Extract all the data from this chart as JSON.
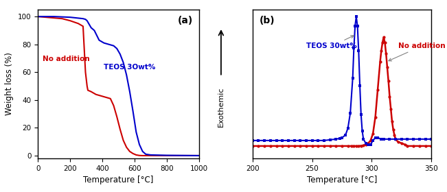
{
  "panel_a": {
    "label": "(a)",
    "xlabel": "Temperature [°C]",
    "ylabel": "Weight loss (%)",
    "xlim": [
      0,
      1000
    ],
    "ylim": [
      -2,
      105
    ],
    "xticks": [
      0,
      200,
      400,
      600,
      800,
      1000
    ],
    "yticks": [
      0,
      20,
      40,
      60,
      80,
      100
    ],
    "no_addition": {
      "color": "#cc0000",
      "label": "No addition",
      "x": [
        0,
        50,
        100,
        150,
        200,
        250,
        280,
        295,
        300,
        305,
        310,
        330,
        360,
        390,
        420,
        450,
        470,
        490,
        510,
        530,
        550,
        570,
        590,
        610,
        630,
        650,
        680,
        700,
        800,
        1000
      ],
      "y": [
        100,
        99.5,
        99,
        98.5,
        97,
        95,
        93,
        60,
        55,
        50,
        47,
        46,
        44,
        43,
        42,
        41,
        36,
        28,
        19,
        11,
        6,
        3,
        1.5,
        0.5,
        0.1,
        0,
        0,
        0,
        0,
        0
      ]
    },
    "teos_30": {
      "color": "#0000cc",
      "label": "TEOS 3Owt%",
      "x": [
        0,
        100,
        200,
        280,
        295,
        300,
        305,
        310,
        320,
        330,
        350,
        380,
        410,
        440,
        470,
        490,
        510,
        530,
        550,
        570,
        590,
        610,
        630,
        650,
        670,
        700,
        800,
        1000
      ],
      "y": [
        100,
        100,
        99.5,
        98.5,
        98,
        97.5,
        97,
        96,
        94,
        92,
        90,
        83,
        81,
        80,
        79,
        77,
        73,
        67,
        58,
        46,
        32,
        17,
        8,
        3,
        1,
        0.5,
        0.2,
        0
      ]
    }
  },
  "panel_b": {
    "label": "(b)",
    "xlabel": "Temperature [°C]",
    "xlim": [
      200,
      350
    ],
    "ylim": [
      -0.08,
      1.0
    ],
    "xticks": [
      200,
      250,
      300,
      350
    ],
    "no_addition": {
      "color": "#cc0000",
      "label": "No addition",
      "x": [
        200,
        205,
        210,
        215,
        220,
        225,
        230,
        235,
        240,
        245,
        250,
        255,
        260,
        265,
        270,
        275,
        280,
        283,
        285,
        287,
        289,
        291,
        293,
        295,
        297,
        299,
        301,
        303,
        305,
        307,
        308,
        309,
        310,
        311,
        312,
        313,
        314,
        315,
        316,
        317,
        318,
        319,
        320,
        322,
        325,
        328,
        330,
        335,
        340,
        345,
        350
      ],
      "y": [
        0.01,
        0.01,
        0.01,
        0.01,
        0.01,
        0.01,
        0.01,
        0.01,
        0.01,
        0.01,
        0.01,
        0.01,
        0.01,
        0.01,
        0.01,
        0.01,
        0.01,
        0.01,
        0.01,
        0.01,
        0.01,
        0.012,
        0.015,
        0.02,
        0.03,
        0.05,
        0.1,
        0.22,
        0.42,
        0.62,
        0.7,
        0.76,
        0.8,
        0.76,
        0.68,
        0.58,
        0.48,
        0.37,
        0.28,
        0.19,
        0.13,
        0.09,
        0.06,
        0.04,
        0.03,
        0.02,
        0.01,
        0.01,
        0.01,
        0.01,
        0.01
      ]
    },
    "teos_30": {
      "color": "#0000cc",
      "label": "TEOS 30wt%",
      "x": [
        200,
        205,
        210,
        215,
        220,
        225,
        230,
        235,
        240,
        245,
        250,
        255,
        260,
        265,
        270,
        273,
        275,
        278,
        280,
        282,
        284,
        285,
        286,
        287,
        288,
        289,
        290,
        291,
        292,
        293,
        295,
        297,
        299,
        301,
        303,
        305,
        308,
        310,
        315,
        320,
        325,
        330,
        335,
        340,
        345,
        350
      ],
      "y": [
        0.05,
        0.05,
        0.05,
        0.05,
        0.05,
        0.05,
        0.05,
        0.05,
        0.05,
        0.05,
        0.05,
        0.05,
        0.05,
        0.055,
        0.06,
        0.065,
        0.07,
        0.09,
        0.14,
        0.25,
        0.5,
        0.72,
        0.88,
        0.95,
        0.88,
        0.7,
        0.45,
        0.24,
        0.12,
        0.06,
        0.03,
        0.02,
        0.02,
        0.05,
        0.07,
        0.07,
        0.06,
        0.06,
        0.06,
        0.06,
        0.06,
        0.06,
        0.06,
        0.06,
        0.06,
        0.06
      ]
    }
  },
  "exothemic_label": "Exothemic",
  "arrow_color": "black"
}
